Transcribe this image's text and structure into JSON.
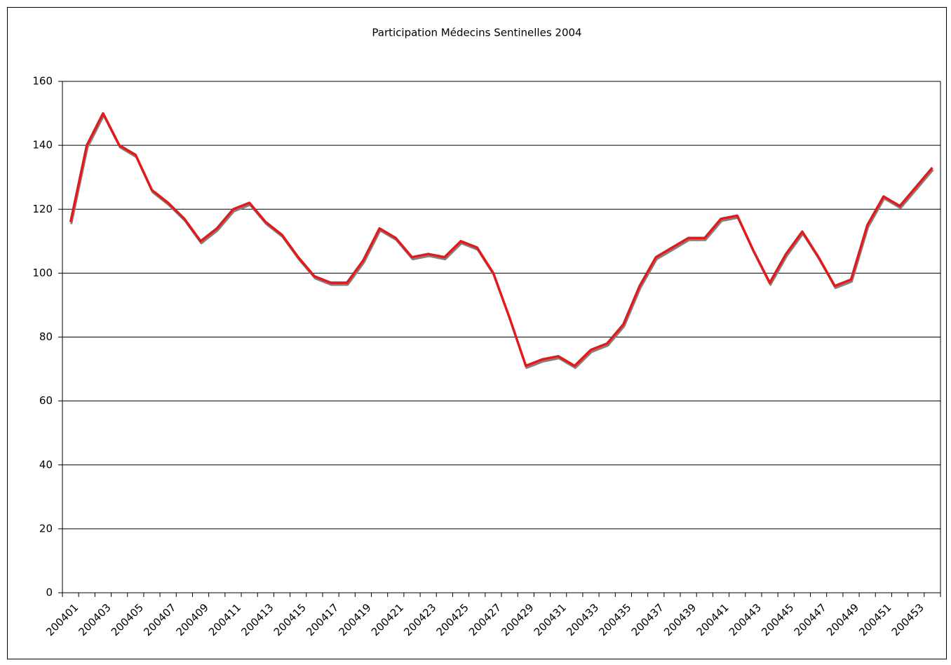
{
  "chart_data": {
    "type": "line",
    "title": "Participation Médecins Sentinelles 2004",
    "categories": [
      "200401",
      null,
      "200403",
      null,
      "200405",
      null,
      "200407",
      null,
      "200409",
      null,
      "200411",
      null,
      "200413",
      null,
      "200415",
      null,
      "200417",
      null,
      "200419",
      null,
      "200421",
      null,
      "200423",
      null,
      "200425",
      null,
      "200427",
      null,
      "200429",
      null,
      "200431",
      null,
      "200433",
      null,
      "200435",
      null,
      "200437",
      null,
      "200439",
      null,
      "200441",
      null,
      "200443",
      null,
      "200445",
      null,
      "200447",
      null,
      "200449",
      null,
      "200451",
      null,
      "200453",
      null
    ],
    "series": [
      {
        "color": "#e31a1c",
        "values": [
          116,
          140,
          150,
          140,
          137,
          126,
          122,
          117,
          110,
          114,
          120,
          122,
          116,
          112,
          105,
          99,
          97,
          97,
          104,
          114,
          111,
          105,
          106,
          105,
          110,
          108,
          100,
          86,
          71,
          73,
          74,
          71,
          76,
          78,
          84,
          96,
          105,
          108,
          111,
          111,
          117,
          118,
          107,
          97,
          106,
          113,
          105,
          96,
          98,
          115,
          124,
          121,
          127,
          133
        ]
      }
    ],
    "ylim": [
      0,
      160
    ],
    "yticks": [
      0,
      20,
      40,
      60,
      80,
      100,
      120,
      140,
      160
    ],
    "grid": true
  }
}
